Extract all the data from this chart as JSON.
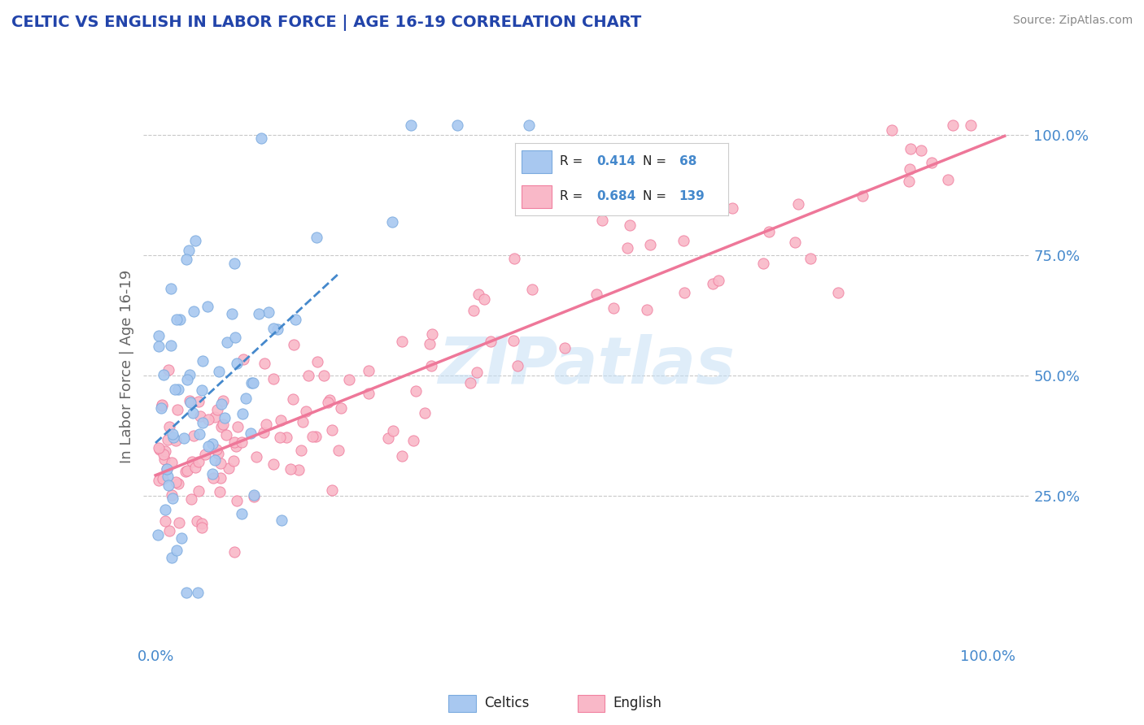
{
  "title": "CELTIC VS ENGLISH IN LABOR FORCE | AGE 16-19 CORRELATION CHART",
  "source": "Source: ZipAtlas.com",
  "ylabel": "In Labor Force | Age 16-19",
  "celtics_color": "#a8c8f0",
  "celtics_edge": "#7aaade",
  "english_color": "#f9b8c8",
  "english_edge": "#f080a0",
  "trend_celtics_color": "#4488cc",
  "trend_english_color": "#ee7799",
  "legend_R_celtics": "0.414",
  "legend_N_celtics": "68",
  "legend_R_english": "0.684",
  "legend_N_english": "139",
  "watermark": "ZIPatlas",
  "title_color": "#2244aa",
  "source_color": "#888888",
  "tick_color": "#4488cc",
  "ylabel_color": "#666666"
}
